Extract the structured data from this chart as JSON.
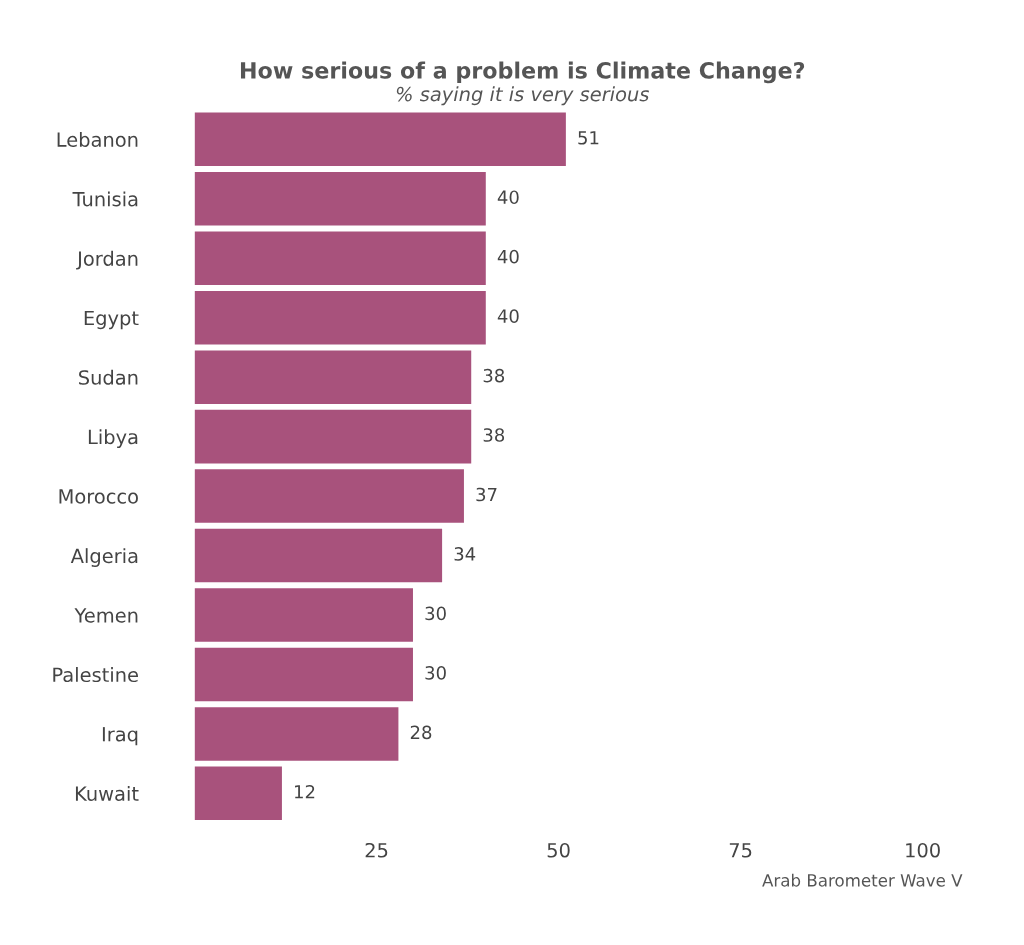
{
  "chart_data": {
    "type": "bar",
    "orientation": "horizontal",
    "title": "How serious of a problem is Climate Change?",
    "subtitle": "% saying it is very serious",
    "categories": [
      "Lebanon",
      "Tunisia",
      "Jordan",
      "Egypt",
      "Sudan",
      "Libya",
      "Morocco",
      "Algeria",
      "Yemen",
      "Palestine",
      "Iraq",
      "Kuwait"
    ],
    "values": [
      51,
      40,
      40,
      40,
      38,
      38,
      37,
      34,
      30,
      30,
      28,
      12
    ],
    "color": "#a8527c",
    "xlim": [
      0,
      100
    ],
    "xticks": [
      25,
      50,
      75,
      100
    ],
    "data_labels": true,
    "grid": false,
    "legend": false,
    "annotations": [
      "Arab Barometer Wave V"
    ]
  }
}
